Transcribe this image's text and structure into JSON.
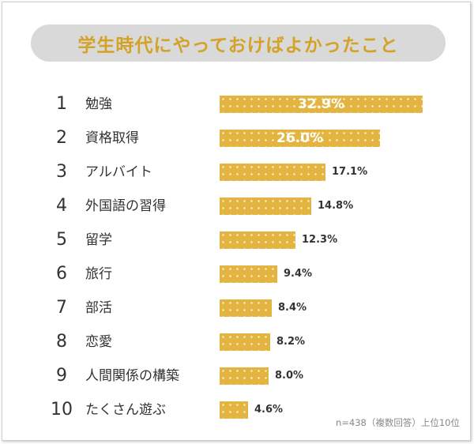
{
  "title": "学生時代にやっておけばよかったこと",
  "note": "n=438（複数回答）上位10位",
  "colors": {
    "bar": "#e3b43f",
    "title": "#d4a227",
    "pill": "#d9d9d9"
  },
  "chart_data": {
    "type": "bar",
    "orientation": "horizontal",
    "title": "学生時代にやっておけばよかったこと",
    "ranks": [
      "1",
      "2",
      "3",
      "4",
      "5",
      "6",
      "7",
      "8",
      "9",
      "10"
    ],
    "categories": [
      "勉強",
      "資格取得",
      "アルバイト",
      "外国語の習得",
      "留学",
      "旅行",
      "部活",
      "恋愛",
      "人間関係の構築",
      "たくさん遊ぶ"
    ],
    "values": [
      32.9,
      26.0,
      17.1,
      14.8,
      12.3,
      9.4,
      8.4,
      8.2,
      8.0,
      4.6
    ],
    "value_labels": [
      "32.9%",
      "26.0%",
      "17.1%",
      "14.8%",
      "12.3%",
      "9.4%",
      "8.4%",
      "8.2%",
      "8.0%",
      "4.6%"
    ],
    "unit": "%"
  }
}
